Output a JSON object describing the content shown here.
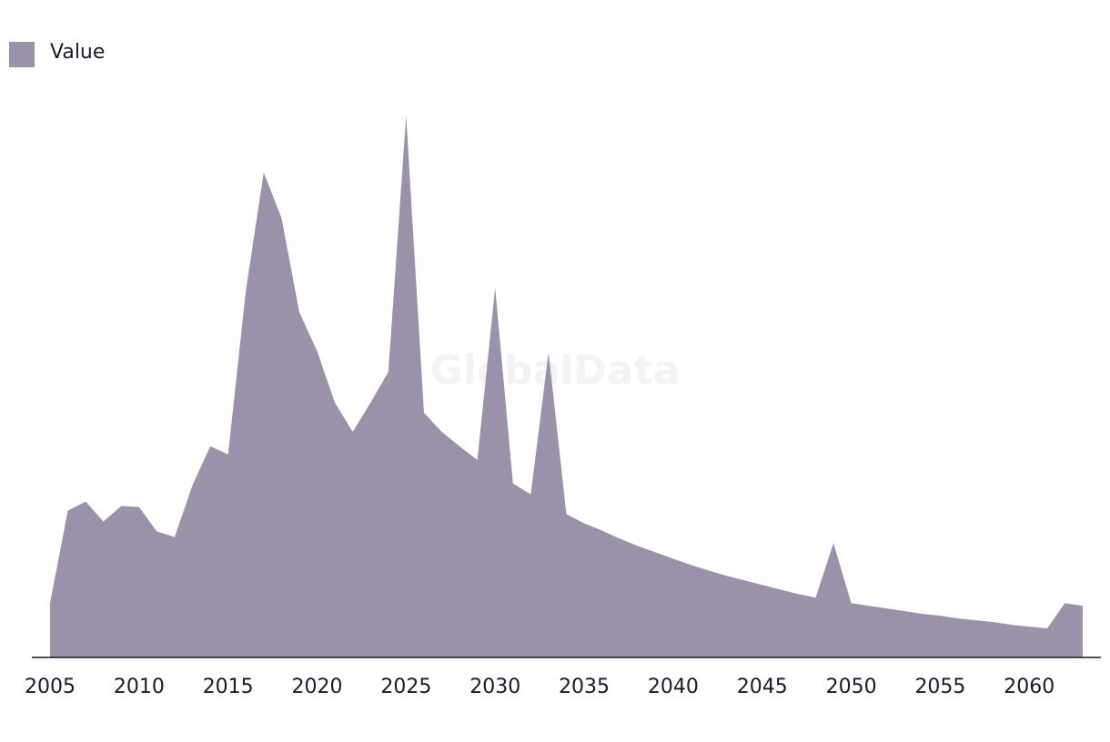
{
  "chart_data": {
    "type": "area",
    "watermark": "GlobalData",
    "x": [
      2005,
      2006,
      2007,
      2008,
      2009,
      2010,
      2011,
      2012,
      2013,
      2014,
      2015,
      2016,
      2017,
      2018,
      2019,
      2020,
      2021,
      2022,
      2023,
      2024,
      2025,
      2026,
      2027,
      2028,
      2029,
      2030,
      2031,
      2032,
      2033,
      2034,
      2035,
      2036,
      2037,
      2038,
      2039,
      2040,
      2041,
      2042,
      2043,
      2044,
      2045,
      2046,
      2047,
      2048,
      2049,
      2050,
      2051,
      2052,
      2053,
      2054,
      2055,
      2056,
      2057,
      2058,
      2059,
      2060,
      2061,
      2062,
      2063
    ],
    "series": [
      {
        "name": "Value",
        "color": "#9b92aa",
        "values": [
          60,
          162,
          172,
          150,
          167,
          166,
          139,
          133,
          190,
          233,
          224,
          405,
          535,
          485,
          381,
          338,
          281,
          249,
          281,
          315,
          598,
          270,
          249,
          233,
          218,
          408,
          192,
          180,
          337,
          158,
          148,
          140,
          131,
          123,
          116,
          109,
          102,
          96,
          90,
          85,
          80,
          75,
          70,
          66,
          126,
          60,
          57,
          54,
          51,
          48,
          46,
          43,
          41,
          39,
          36,
          34,
          32,
          60,
          57
        ]
      }
    ],
    "xlim": [
      2005,
      2063
    ],
    "xticks": [
      2005,
      2010,
      2015,
      2020,
      2025,
      2030,
      2035,
      2040,
      2045,
      2050,
      2055,
      2060
    ],
    "ylim": [
      0,
      600
    ],
    "legend": "top-left"
  }
}
